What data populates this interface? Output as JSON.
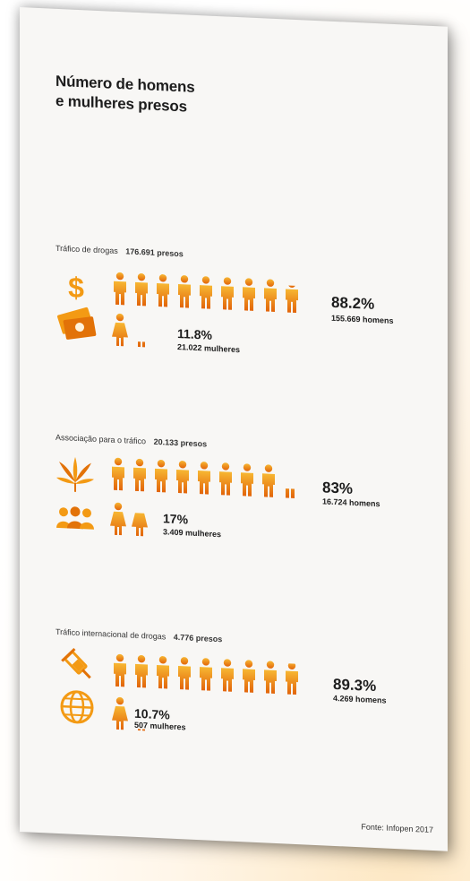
{
  "title_line1": "Número de homens",
  "title_line2": "e mulheres presos",
  "sections": [
    {
      "label": "Tráfico de drogas",
      "total": "176.691 presos",
      "icons": [
        "dollar-icon",
        "cash-icon"
      ],
      "men_pct": "88.2%",
      "men_count": "155.669 homens",
      "women_pct": "11.8%",
      "women_count": "21.022 mulheres",
      "men_fraction": 0.882,
      "women_fraction": 0.118
    },
    {
      "label": "Associação para o tráfico",
      "total": "20.133 presos",
      "icons": [
        "cannabis-leaf-icon",
        "group-people-icon"
      ],
      "men_pct": "83%",
      "men_count": "16.724 homens",
      "women_pct": "17%",
      "women_count": "3.409 mulheres",
      "men_fraction": 0.83,
      "women_fraction": 0.17
    },
    {
      "label": "Tráfico internacional de drogas",
      "total": "4.776 presos",
      "icons": [
        "syringe-icon",
        "globe-icon"
      ],
      "men_pct": "89.3%",
      "men_count": "4.269 homens",
      "women_pct": "10.7%",
      "women_count": "507 mulheres",
      "men_fraction": 0.893,
      "women_fraction": 0.107
    }
  ],
  "footer": "Fonte: Infopen 2017",
  "colors": {
    "icon_orange": "#f39a14",
    "icon_dark": "#e27208",
    "text": "#1d1d1d"
  }
}
